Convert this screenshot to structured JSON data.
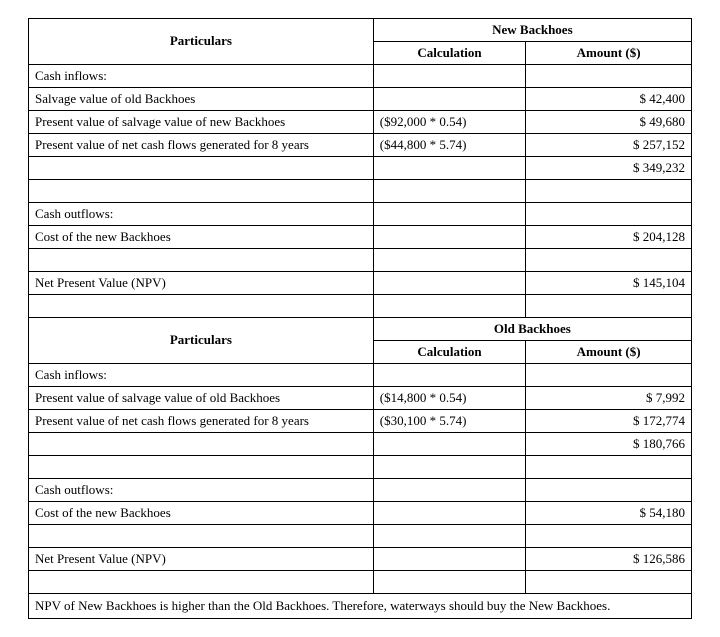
{
  "typography": {
    "font_family": "Times New Roman",
    "font_size_pt": 10
  },
  "colors": {
    "border": "#000000",
    "text": "#000000",
    "background": "#ffffff"
  },
  "layout": {
    "col_widths_pct": [
      52,
      23,
      25
    ]
  },
  "labels": {
    "particulars": "Particulars",
    "calculation": "Calculation",
    "amount": "Amount ($)"
  },
  "new": {
    "title": "New Backhoes",
    "rows": {
      "inflows_heading": "Cash inflows:",
      "salvage_old": {
        "label": "Salvage value of old Backhoes",
        "calc": "",
        "amount": "$ 42,400"
      },
      "pv_salvage_new": {
        "label": "Present value of salvage value of new Backhoes",
        "calc": "($92,000 * 0.54)",
        "amount": "$ 49,680"
      },
      "pv_netcf": {
        "label": "Present value of net cash flows generated for 8 years",
        "calc": "($44,800 * 5.74)",
        "amount": "$ 257,152"
      },
      "inflows_total": "$ 349,232",
      "outflows_heading": "Cash outflows:",
      "cost_new": {
        "label": "Cost of the new Backhoes",
        "calc": "",
        "amount": "$ 204,128"
      },
      "npv": {
        "label": "Net Present Value (NPV)",
        "amount": "$ 145,104"
      }
    }
  },
  "old": {
    "title": "Old Backhoes",
    "rows": {
      "inflows_heading": "Cash inflows:",
      "pv_salvage_old": {
        "label": "Present value of salvage value of old Backhoes",
        "calc": "($14,800 * 0.54)",
        "amount": "$ 7,992"
      },
      "pv_netcf": {
        "label": "Present value of net cash flows generated for 8 years",
        "calc": "($30,100 * 5.74)",
        "amount": "$ 172,774"
      },
      "inflows_total": "$ 180,766",
      "outflows_heading": "Cash outflows:",
      "cost_new": {
        "label": "Cost of the new Backhoes",
        "calc": "",
        "amount": "$ 54,180"
      },
      "npv": {
        "label": "Net Present Value (NPV)",
        "amount": "$ 126,586"
      }
    }
  },
  "footer": "NPV of New Backhoes is higher than the Old Backhoes. Therefore, waterways should buy the New Backhoes."
}
